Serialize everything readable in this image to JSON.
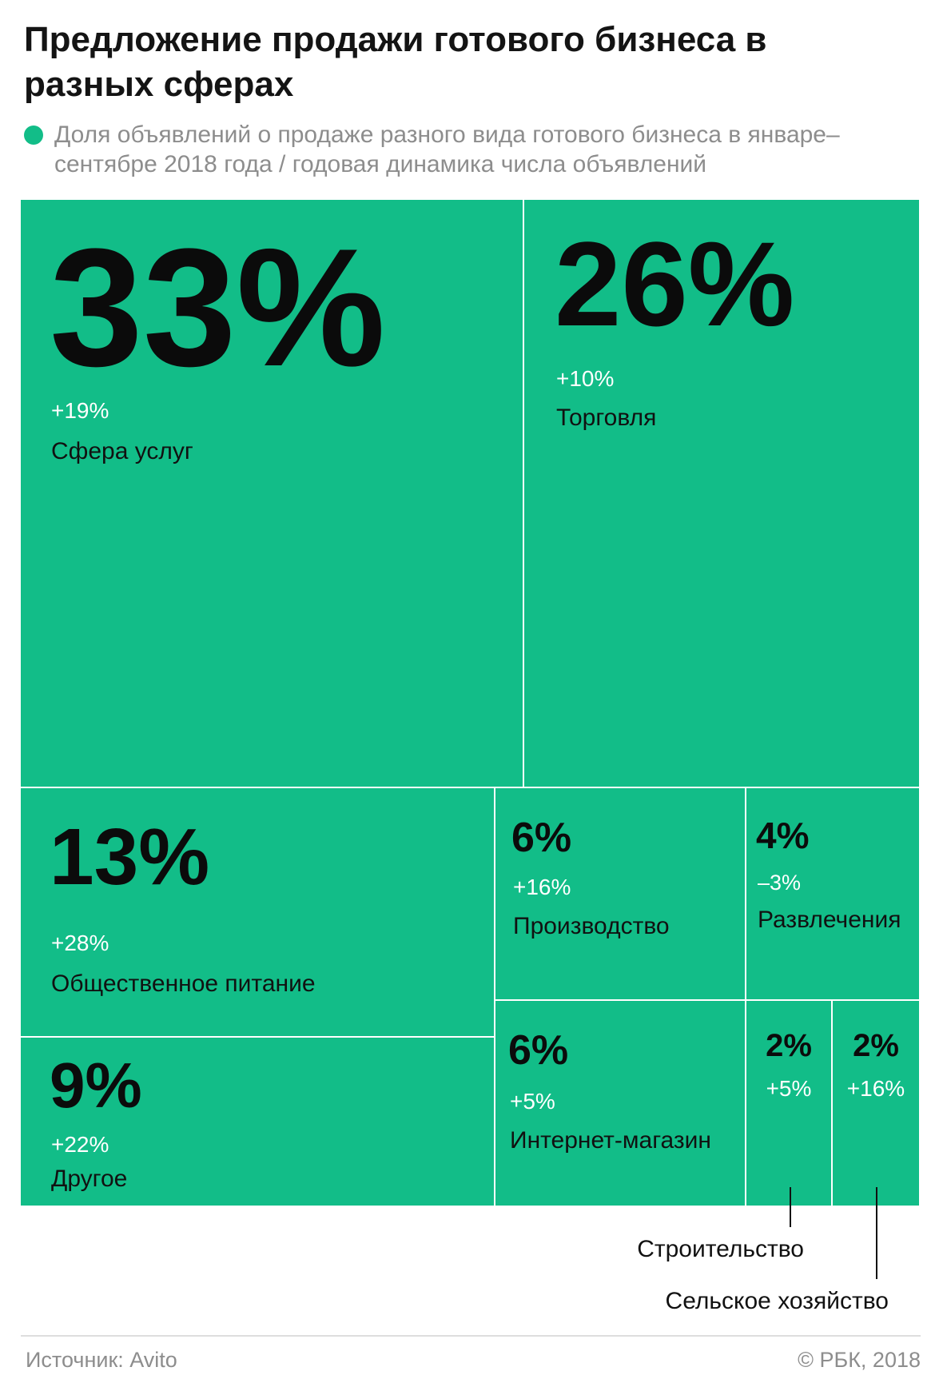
{
  "title": "Предложение продажи готового бизнеса в разных сферах",
  "subtitle": "Доля объявлений о продаже разного вида готового бизнеса в январе–сентябре 2018 года / годовая динамика числа объявлений",
  "colors": {
    "accent": "#12bd88"
  },
  "chart_data": {
    "type": "treemap",
    "items": [
      {
        "share": 33,
        "share_label": "33%",
        "change": "+19%",
        "label": "Сфера услуг"
      },
      {
        "share": 26,
        "share_label": "26%",
        "change": "+10%",
        "label": "Торговля"
      },
      {
        "share": 13,
        "share_label": "13%",
        "change": "+28%",
        "label": "Общественное питание"
      },
      {
        "share": 9,
        "share_label": "9%",
        "change": "+22%",
        "label": "Другое"
      },
      {
        "share": 6,
        "share_label": "6%",
        "change": "+16%",
        "label": "Производство"
      },
      {
        "share": 4,
        "share_label": "4%",
        "change": "–3%",
        "label": "Развлечения"
      },
      {
        "share": 6,
        "share_label": "6%",
        "change": "+5%",
        "label": "Интернет-магазин"
      },
      {
        "share": 2,
        "share_label": "2%",
        "change": "+5%",
        "label": "Строительство"
      },
      {
        "share": 2,
        "share_label": "2%",
        "change": "+16%",
        "label": "Сельское хозяйство"
      }
    ]
  },
  "footer": {
    "source": "Источник: Avito",
    "copyright": "© РБК, 2018"
  }
}
